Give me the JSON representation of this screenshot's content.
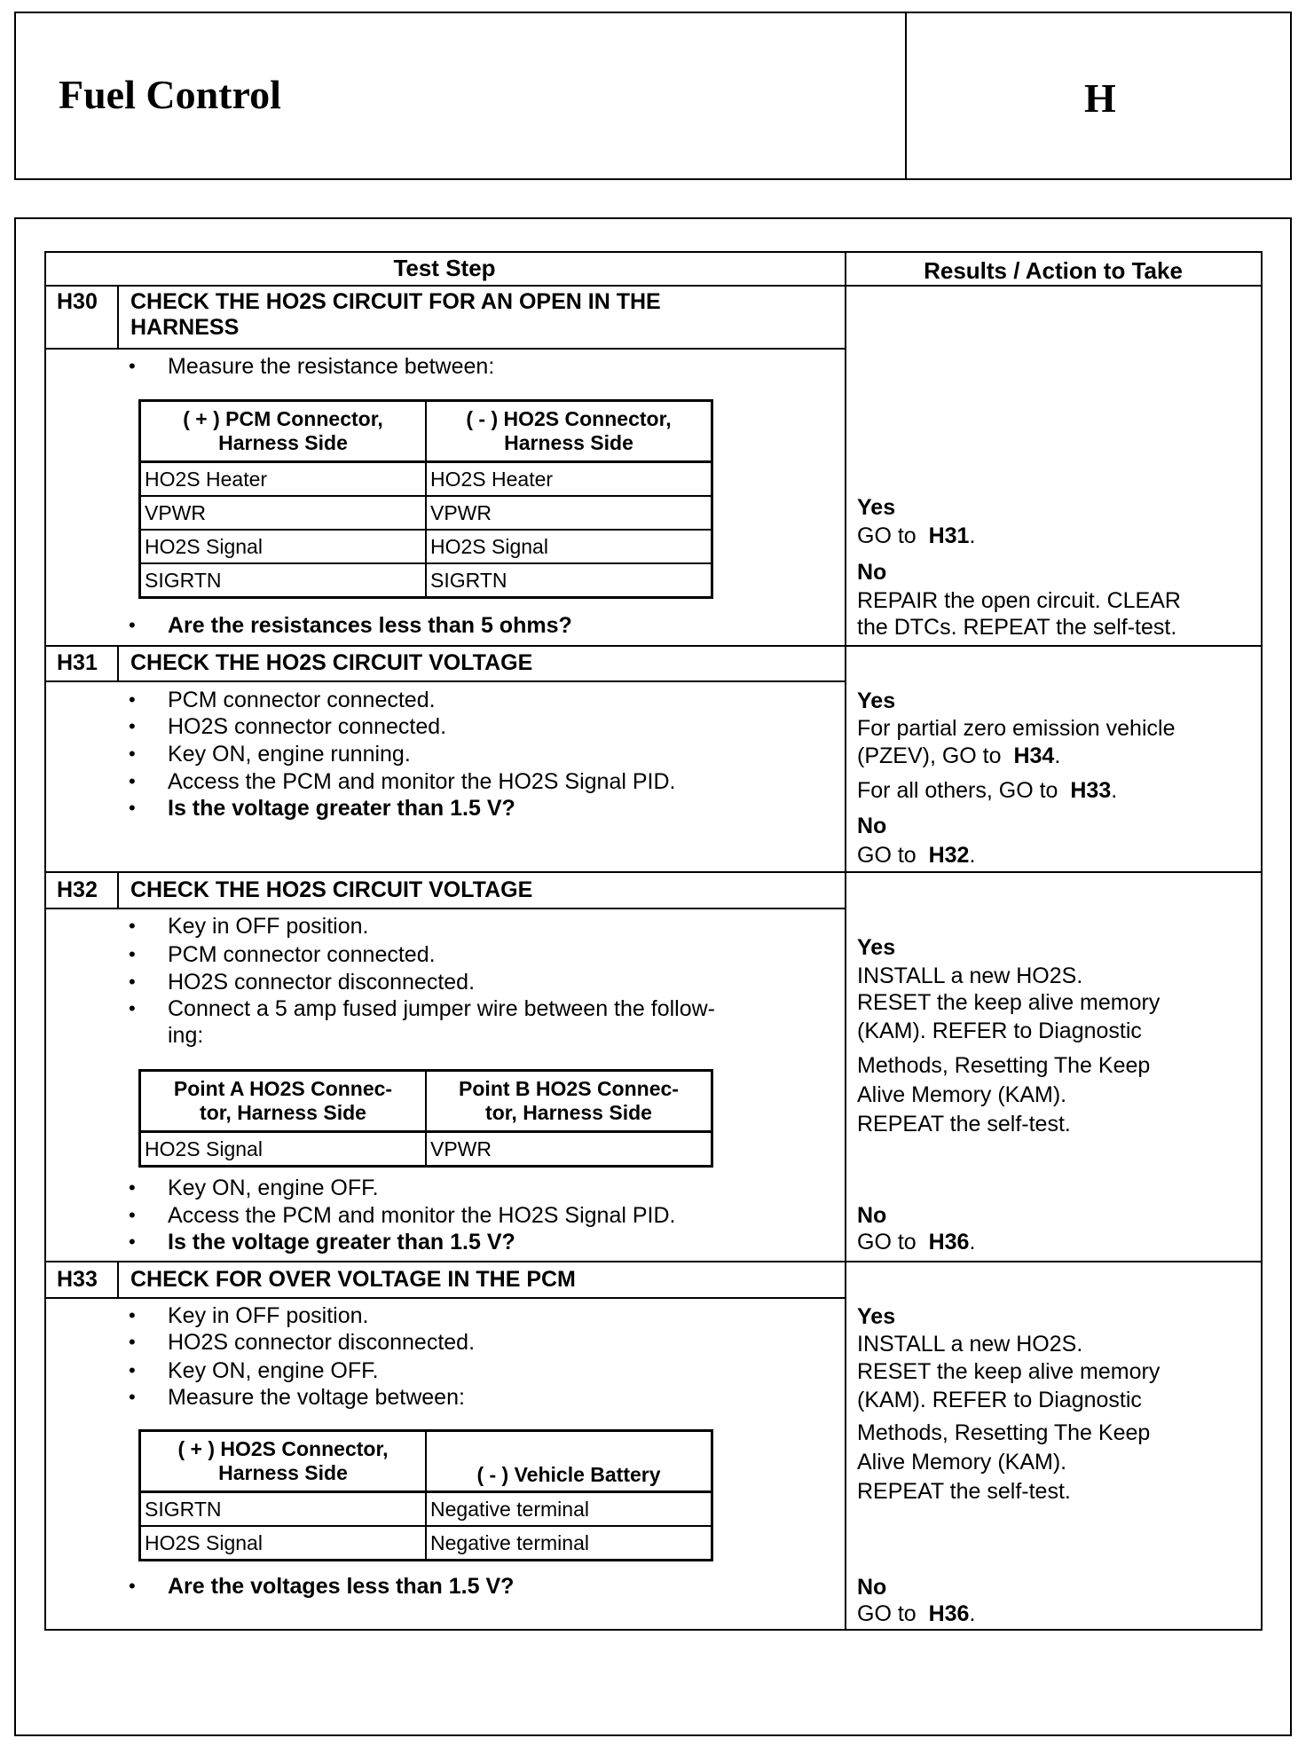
{
  "header": {
    "title": "Fuel Control",
    "section": "H"
  },
  "columns": {
    "test_step": "Test Step",
    "results": "Results / Action to Take"
  },
  "steps": [
    {
      "id": "H30",
      "title_lines": [
        "CHECK THE HO2S CIRCUIT FOR AN OPEN IN THE",
        "HARNESS"
      ],
      "bullets_before": [
        "Measure the resistance between:"
      ],
      "table": {
        "headers": [
          [
            "( + ) PCM Connector,",
            "Harness Side"
          ],
          [
            "( - ) HO2S Connector,",
            "Harness Side"
          ]
        ],
        "rows": [
          [
            "HO2S Heater",
            "HO2S Heater"
          ],
          [
            "VPWR",
            "VPWR"
          ],
          [
            "HO2S Signal",
            "HO2S Signal"
          ],
          [
            "SIGRTN",
            "SIGRTN"
          ]
        ]
      },
      "question": "Are the resistances less than 5 ohms?",
      "results": {
        "yes": "Yes",
        "yes_lines": [
          {
            "pre": "GO to",
            "ref": "H31",
            "post": "."
          }
        ],
        "no": "No",
        "no_lines": [
          {
            "pre": "REPAIR the open circuit. CLEAR"
          },
          {
            "pre": "the DTCs. REPEAT the self-test."
          }
        ]
      }
    },
    {
      "id": "H31",
      "title_lines": [
        "CHECK THE HO2S CIRCUIT VOLTAGE"
      ],
      "bullets_before": [
        "PCM connector connected.",
        "HO2S connector connected.",
        "Key ON, engine running.",
        "Access the PCM and monitor the HO2S Signal PID."
      ],
      "question": "Is the voltage greater than 1.5 V?",
      "results": {
        "yes": "Yes",
        "yes_lines": [
          {
            "pre": "For partial zero emission vehicle"
          },
          {
            "pre": "(PZEV), GO to",
            "ref": "H34",
            "post": "."
          },
          {
            "pre": "For all others, GO to",
            "ref": "H33",
            "post": "."
          }
        ],
        "no": "No",
        "no_lines": [
          {
            "pre": "GO to",
            "ref": "H32",
            "post": "."
          }
        ]
      }
    },
    {
      "id": "H32",
      "title_lines": [
        "CHECK THE HO2S CIRCUIT VOLTAGE"
      ],
      "bullets_before": [
        "Key in OFF position.",
        "PCM connector connected.",
        "HO2S connector disconnected.",
        "Connect a 5 amp fused jumper wire between the follow-",
        "ing:"
      ],
      "table": {
        "headers": [
          [
            "Point A HO2S Connec-",
            "tor, Harness Side"
          ],
          [
            "Point B HO2S Connec-",
            "tor, Harness Side"
          ]
        ],
        "rows": [
          [
            "HO2S Signal",
            "VPWR"
          ]
        ]
      },
      "bullets_after": [
        "Key ON, engine OFF.",
        "Access the PCM and monitor the HO2S Signal PID."
      ],
      "question": "Is the voltage greater than 1.5 V?",
      "results": {
        "yes": "Yes",
        "yes_lines": [
          {
            "pre": "INSTALL a new HO2S."
          },
          {
            "pre": "RESET the keep alive memory"
          },
          {
            "pre": "(KAM). REFER to Diagnostic"
          },
          {
            "pre": "Methods, Resetting The Keep"
          },
          {
            "pre": "Alive Memory (KAM)."
          },
          {
            "pre": "REPEAT the self-test."
          }
        ],
        "no": "No",
        "no_lines": [
          {
            "pre": "GO to",
            "ref": "H36",
            "post": "."
          }
        ]
      }
    },
    {
      "id": "H33",
      "title_lines": [
        "CHECK FOR OVER VOLTAGE IN THE PCM"
      ],
      "bullets_before": [
        "Key in OFF position.",
        "HO2S connector disconnected.",
        "Key ON, engine OFF.",
        "Measure the voltage between:"
      ],
      "table": {
        "headers": [
          [
            "( + ) HO2S Connector,",
            "Harness Side"
          ],
          [
            "",
            "( - ) Vehicle Battery"
          ]
        ],
        "rows": [
          [
            "SIGRTN",
            "Negative terminal"
          ],
          [
            "HO2S Signal",
            "Negative terminal"
          ]
        ]
      },
      "question": "Are the voltages less than 1.5 V?",
      "results": {
        "yes": "Yes",
        "yes_lines": [
          {
            "pre": "INSTALL a new HO2S."
          },
          {
            "pre": "RESET the keep alive memory"
          },
          {
            "pre": "(KAM). REFER to Diagnostic"
          },
          {
            "pre": "Methods, Resetting The Keep"
          },
          {
            "pre": "Alive Memory (KAM)."
          },
          {
            "pre": "REPEAT the self-test."
          }
        ],
        "no": "No",
        "no_lines": [
          {
            "pre": "GO to",
            "ref": "H36",
            "post": "."
          }
        ]
      }
    }
  ]
}
